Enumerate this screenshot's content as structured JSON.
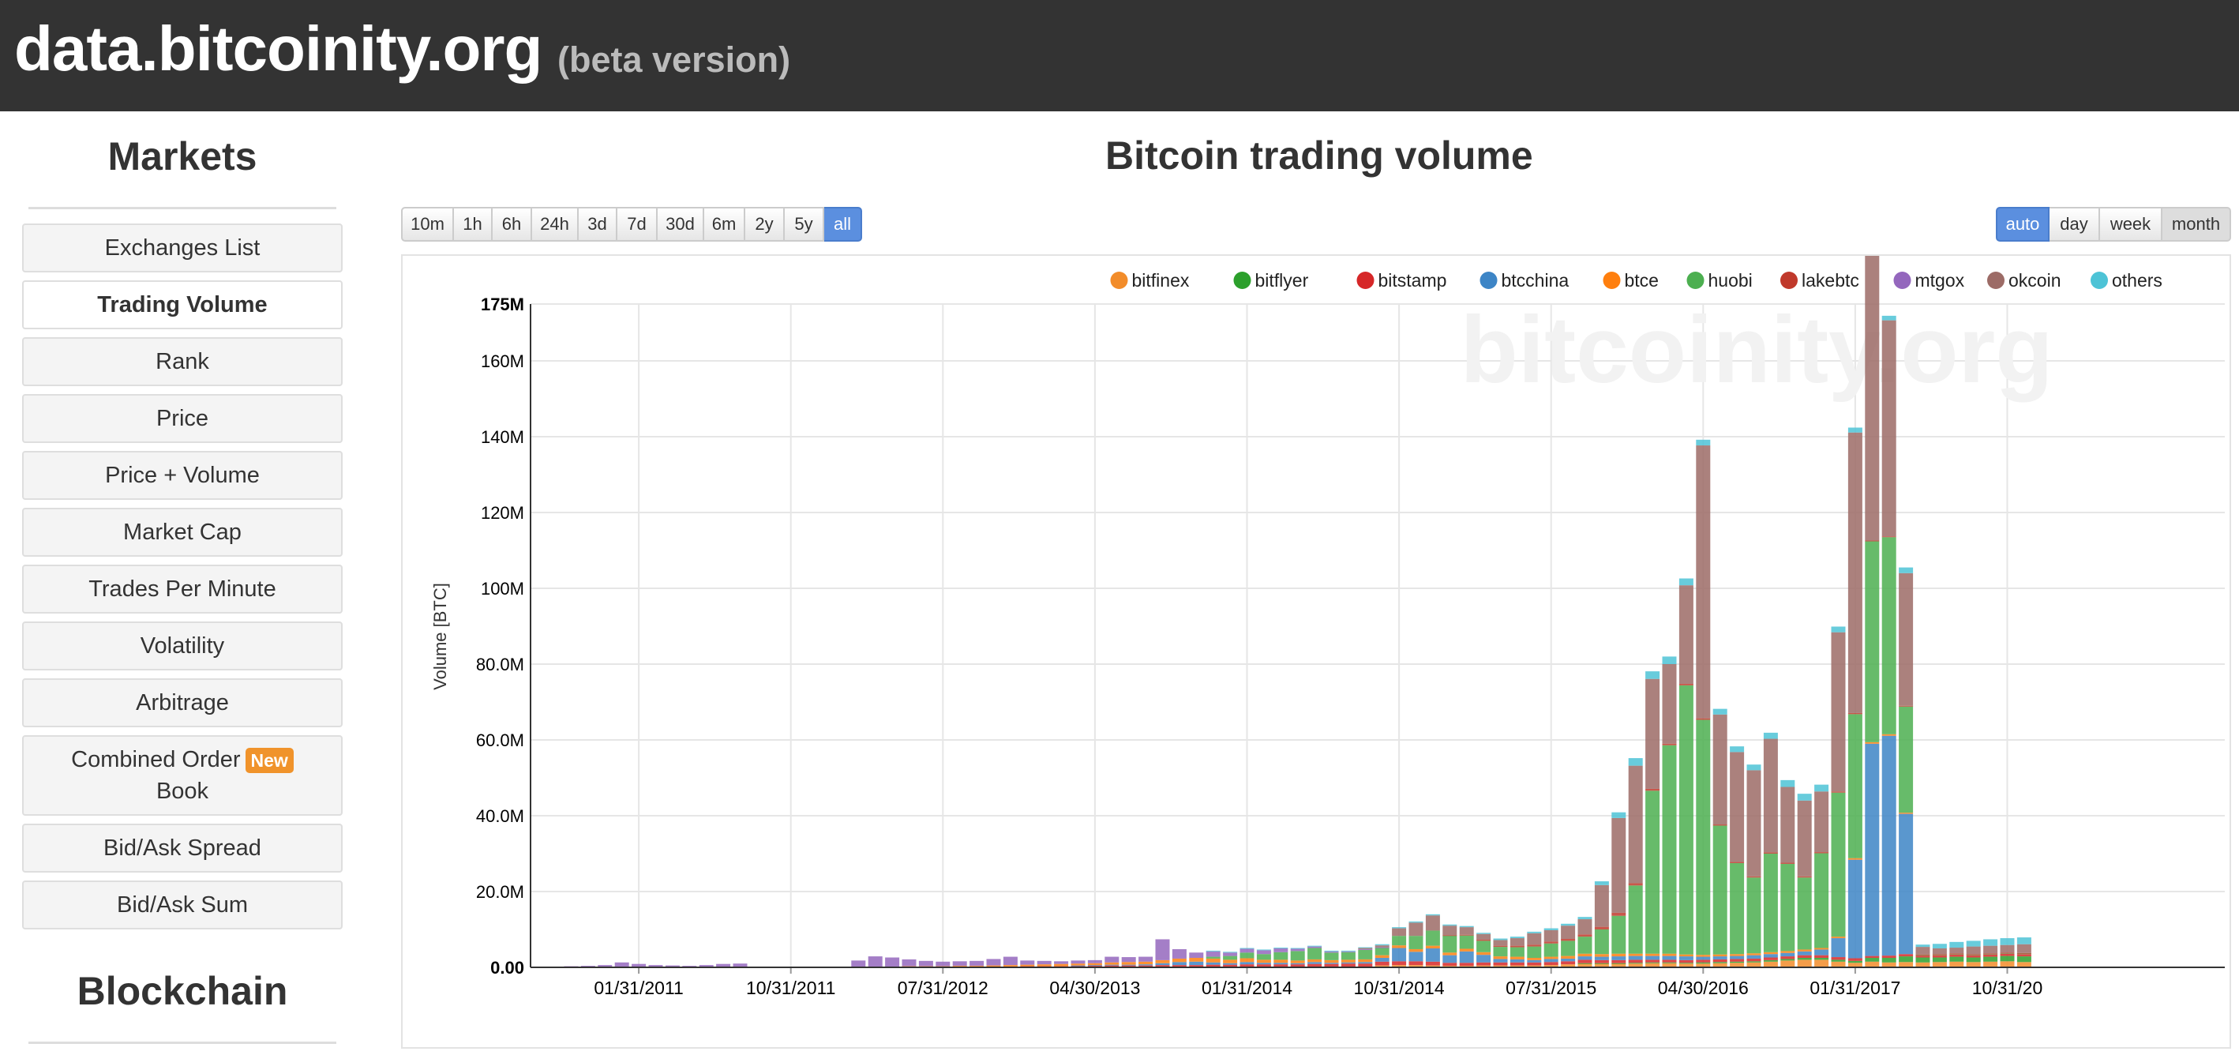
{
  "header": {
    "site_name": "data.bitcoinity.org",
    "beta_label": "(beta version)"
  },
  "sidebar": {
    "markets_heading": "Markets",
    "items": [
      {
        "label": "Exchanges List"
      },
      {
        "label": "Trading Volume",
        "active": true
      },
      {
        "label": "Rank"
      },
      {
        "label": "Price"
      },
      {
        "label": "Price + Volume"
      },
      {
        "label": "Market Cap"
      },
      {
        "label": "Trades Per Minute"
      },
      {
        "label": "Volatility"
      },
      {
        "label": "Arbitrage"
      },
      {
        "label": "Combined Order",
        "label2": "Book",
        "badge": "New"
      },
      {
        "label": "Bid/Ask Spread"
      },
      {
        "label": "Bid/Ask Sum"
      }
    ],
    "blockchain_heading": "Blockchain"
  },
  "timespan_buttons": [
    "10m",
    "1h",
    "6h",
    "24h",
    "3d",
    "7d",
    "30d",
    "6m",
    "2y",
    "5y",
    "all"
  ],
  "timespan_selected": "all",
  "resolution_buttons": [
    "auto",
    "day",
    "week",
    "month"
  ],
  "resolution_selected": "auto",
  "resolution_pressed": "month",
  "colors": {
    "header_bg": "#333333",
    "accent": "#5b8fdf",
    "badge": "#f0932b"
  },
  "chart_data": {
    "type": "bar",
    "stacked": true,
    "title": "Bitcoin trading volume",
    "ylabel": "Volume [BTC]",
    "xlabel": "",
    "watermark": "bitcoinity.org",
    "ylim": [
      0,
      175000000
    ],
    "y_ticks": [
      {
        "value": 0,
        "label": "0.00"
      },
      {
        "value": 20000000,
        "label": "20.0M"
      },
      {
        "value": 40000000,
        "label": "40.0M"
      },
      {
        "value": 60000000,
        "label": "60.0M"
      },
      {
        "value": 80000000,
        "label": "80.0M"
      },
      {
        "value": 100000000,
        "label": "100M"
      },
      {
        "value": 120000000,
        "label": "120M"
      },
      {
        "value": 140000000,
        "label": "140M"
      },
      {
        "value": 160000000,
        "label": "160M"
      },
      {
        "value": 175000000,
        "label": "175M"
      }
    ],
    "x_ticks": [
      "01/31/2011",
      "10/31/2011",
      "07/31/2012",
      "04/30/2013",
      "01/31/2014",
      "10/31/2014",
      "07/31/2015",
      "04/30/2016",
      "01/31/2017",
      "10/31/20"
    ],
    "x_tick_month_index": [
      6,
      15,
      24,
      33,
      42,
      51,
      60,
      69,
      78,
      87
    ],
    "legend_position": "top-right",
    "grid": true,
    "categories_note": "monthly bars, index 0 = July 2010",
    "series": [
      {
        "name": "bitfinex",
        "color": "#f28c2a",
        "values": [
          0,
          0,
          0,
          0,
          0,
          0,
          0,
          0,
          0,
          0,
          0,
          0,
          0,
          0,
          0,
          0,
          0,
          0,
          0,
          0,
          0,
          0,
          0,
          0,
          0,
          0,
          0,
          0,
          0,
          0,
          0,
          0,
          0,
          0,
          0,
          0,
          0,
          0,
          0,
          0,
          0,
          0,
          0,
          0,
          0,
          0,
          0,
          0,
          0,
          0,
          0.5,
          0.6,
          0.6,
          0.5,
          0.4,
          0.4,
          0.5,
          0.5,
          0.5,
          0.5,
          0.6,
          0.8,
          1.0,
          1.0,
          1.0,
          1.0,
          1.1,
          1.1,
          1.0,
          1.0,
          1.1,
          1.2,
          1.3,
          1.5,
          1.8,
          2.0,
          2.0,
          1.5,
          1.2,
          1.5,
          1.3,
          1.4,
          1.3,
          1.4,
          1.5,
          1.4,
          1.5,
          1.6,
          1.4
        ]
      },
      {
        "name": "bitflyer",
        "color": "#2ca02c",
        "values": [
          0,
          0,
          0,
          0,
          0,
          0,
          0,
          0,
          0,
          0,
          0,
          0,
          0,
          0,
          0,
          0,
          0,
          0,
          0,
          0,
          0,
          0,
          0,
          0,
          0,
          0,
          0,
          0,
          0,
          0,
          0,
          0,
          0,
          0,
          0,
          0,
          0,
          0,
          0,
          0,
          0,
          0,
          0,
          0,
          0,
          0,
          0,
          0,
          0,
          0,
          0,
          0,
          0,
          0,
          0,
          0,
          0,
          0,
          0,
          0,
          0,
          0,
          0.1,
          0.1,
          0.1,
          0.2,
          0.2,
          0.2,
          0.2,
          0.3,
          0.3,
          0.3,
          0.3,
          0.4,
          0.4,
          0.5,
          0.5,
          0.5,
          0.5,
          1.0,
          1.2,
          1.5,
          1.3,
          1.2,
          1.3,
          1.2,
          1.3,
          1.4,
          1.5
        ]
      },
      {
        "name": "bitstamp",
        "color": "#d62728",
        "values": [
          0,
          0,
          0,
          0,
          0,
          0,
          0,
          0,
          0,
          0,
          0,
          0,
          0,
          0,
          0,
          0,
          0,
          0,
          0,
          0,
          0,
          0,
          0.1,
          0.1,
          0.1,
          0.1,
          0.1,
          0.2,
          0.2,
          0.3,
          0.3,
          0.3,
          0.4,
          0.5,
          0.5,
          0.5,
          0.5,
          0.6,
          0.6,
          0.6,
          0.7,
          0.7,
          0.8,
          0.8,
          0.8,
          0.8,
          0.9,
          0.9,
          1.0,
          1.0,
          1.0,
          1.0,
          1.0,
          1.0,
          0.8,
          0.8,
          0.8,
          0.8,
          0.8,
          0.8,
          0.8,
          0.8,
          0.9,
          0.8,
          0.8,
          0.8,
          0.7,
          0.7,
          0.7,
          0.7,
          0.7,
          0.7,
          0.7,
          0.7,
          0.7,
          0.7,
          0.7,
          0.7,
          0.7,
          0.5,
          0.6,
          0.6,
          0.5,
          0.6,
          0.6,
          0.6,
          0.6,
          0.6,
          0.6
        ]
      },
      {
        "name": "btcchina",
        "color": "#3d85c6",
        "values": [
          0,
          0,
          0,
          0,
          0,
          0,
          0,
          0,
          0,
          0,
          0,
          0,
          0,
          0,
          0,
          0,
          0,
          0,
          0,
          0,
          0,
          0,
          0,
          0,
          0,
          0,
          0,
          0,
          0,
          0,
          0,
          0,
          0.1,
          0.1,
          0.2,
          0.2,
          0.3,
          0.5,
          0.8,
          0.9,
          0.6,
          0.4,
          0.6,
          0.4,
          0.4,
          0.3,
          0.5,
          0.3,
          0.3,
          0.4,
          1.0,
          3.5,
          2.5,
          3.5,
          2.0,
          3.0,
          2.0,
          0.9,
          0.8,
          0.6,
          0.8,
          0.7,
          0.9,
          0.9,
          1.0,
          1.0,
          1.0,
          1.0,
          1.0,
          0.8,
          0.8,
          0.8,
          0.9,
          0.9,
          0.9,
          1.0,
          1.5,
          5.0,
          26.0,
          56.0,
          58.0,
          37.0,
          0,
          0,
          0,
          0,
          0,
          0,
          0
        ]
      },
      {
        "name": "btce",
        "color": "#ff7f0e",
        "values": [
          0,
          0,
          0,
          0,
          0,
          0,
          0,
          0,
          0,
          0,
          0,
          0,
          0,
          0,
          0,
          0,
          0.1,
          0.1,
          0.1,
          0.1,
          0.1,
          0.1,
          0.2,
          0.2,
          0.2,
          0.3,
          0.3,
          0.3,
          0.4,
          0.4,
          0.5,
          0.6,
          0.5,
          0.5,
          0.6,
          0.7,
          0.7,
          0.8,
          0.9,
          1.0,
          1.0,
          0.9,
          1.0,
          0.8,
          0.8,
          0.7,
          0.7,
          0.7,
          0.7,
          0.7,
          0.7,
          0.7,
          0.7,
          0.7,
          0.7,
          0.7,
          0.7,
          0.7,
          0.7,
          0.6,
          0.6,
          0.7,
          0.7,
          0.7,
          0.7,
          0.6,
          0.6,
          0.6,
          0.5,
          0.5,
          0.5,
          0.5,
          0.5,
          0.5,
          0.5,
          0.5,
          0.4,
          0.4,
          0.4,
          0.4,
          0.4,
          0.3,
          0,
          0,
          0,
          0,
          0,
          0,
          0
        ]
      },
      {
        "name": "huobi",
        "color": "#4caf50",
        "values": [
          0,
          0,
          0,
          0,
          0,
          0,
          0,
          0,
          0,
          0,
          0,
          0,
          0,
          0,
          0,
          0,
          0,
          0,
          0,
          0,
          0,
          0,
          0,
          0,
          0,
          0,
          0,
          0,
          0,
          0,
          0,
          0,
          0,
          0,
          0,
          0,
          0,
          0,
          0,
          0,
          0.5,
          1.0,
          1.5,
          1.5,
          2.0,
          2.5,
          3.0,
          2.0,
          2.0,
          2.5,
          2.0,
          2.5,
          3.5,
          4.0,
          4.5,
          3.5,
          3.0,
          2.5,
          2.5,
          3.0,
          3.5,
          4.0,
          4.5,
          6.5,
          10.0,
          18.0,
          43.0,
          55.0,
          71.0,
          62.0,
          34.0,
          24.0,
          20.0,
          26.0,
          23.0,
          19.0,
          25.0,
          38.0,
          38.0,
          53.0,
          52.0,
          28.0,
          0.2,
          0.2,
          0.2,
          0.2,
          0.2,
          0.2,
          0.2
        ]
      },
      {
        "name": "lakebtc",
        "color": "#c0392b",
        "values": [
          0,
          0,
          0,
          0,
          0,
          0,
          0,
          0,
          0,
          0,
          0,
          0,
          0,
          0,
          0,
          0,
          0,
          0,
          0,
          0,
          0,
          0,
          0,
          0,
          0,
          0,
          0,
          0,
          0,
          0,
          0,
          0,
          0,
          0,
          0,
          0,
          0,
          0,
          0,
          0,
          0,
          0,
          0,
          0,
          0,
          0,
          0,
          0,
          0,
          0,
          0,
          0,
          0,
          0,
          0.1,
          0.2,
          0.3,
          0.3,
          0.4,
          0.5,
          0.5,
          0.5,
          0.6,
          0.7,
          0.8,
          0.6,
          0.5,
          0.4,
          0.4,
          0.4,
          0.3,
          0.3,
          0.3,
          0.3,
          0.3,
          0.3,
          0.3,
          0.3,
          0.3,
          0.2,
          0.2,
          0.2,
          0.1,
          0.1,
          0.1,
          0.1,
          0.1,
          0.1,
          0.1
        ]
      },
      {
        "name": "mtgox",
        "color": "#9467bd",
        "values": [
          0.2,
          0.2,
          0.3,
          0.4,
          0.6,
          1.3,
          0.9,
          0.6,
          0.5,
          0.4,
          0.6,
          0.9,
          1.0,
          0,
          0,
          0,
          0,
          0,
          0.1,
          1.7,
          2.8,
          2.5,
          1.8,
          1.4,
          1.2,
          1.2,
          1.3,
          1.7,
          2.2,
          1.1,
          0.9,
          0.7,
          0.8,
          0.8,
          1.5,
          1.3,
          1.3,
          5.5,
          2.5,
          1.4,
          1.4,
          0.9,
          1.0,
          1.0,
          1.0,
          0.6,
          0.4,
          0.3,
          0.2,
          0.2,
          0.1,
          0,
          0,
          0,
          0,
          0,
          0,
          0,
          0,
          0,
          0,
          0,
          0,
          0,
          0,
          0,
          0,
          0,
          0,
          0,
          0,
          0,
          0,
          0,
          0,
          0,
          0,
          0,
          0,
          0,
          0,
          0,
          0,
          0,
          0,
          0,
          0,
          0,
          0
        ]
      },
      {
        "name": "okcoin",
        "color": "#9c6b66",
        "values": [
          0,
          0,
          0,
          0,
          0,
          0,
          0,
          0,
          0,
          0,
          0,
          0,
          0,
          0,
          0,
          0,
          0,
          0,
          0,
          0,
          0,
          0,
          0,
          0,
          0,
          0,
          0,
          0,
          0,
          0,
          0,
          0,
          0,
          0,
          0,
          0,
          0,
          0,
          0,
          0,
          0,
          0,
          0,
          0,
          0,
          0,
          0,
          0,
          0,
          0.3,
          0.5,
          2.0,
          3.5,
          4.0,
          2.5,
          2.0,
          1.5,
          1.5,
          2.0,
          3.0,
          3.0,
          3.5,
          4.0,
          11.0,
          25.0,
          31.0,
          29.0,
          21.0,
          26.0,
          72.0,
          29.0,
          29.0,
          28.0,
          30.0,
          20.0,
          20.0,
          16.0,
          42.0,
          74.0,
          104.0,
          57.0,
          35.0,
          2.0,
          1.5,
          1.5,
          2.0,
          2.0,
          2.0,
          2.3
        ]
      },
      {
        "name": "others",
        "color": "#4dc3d6",
        "values": [
          0,
          0,
          0,
          0,
          0,
          0,
          0,
          0,
          0,
          0,
          0,
          0,
          0,
          0,
          0,
          0,
          0,
          0,
          0,
          0,
          0,
          0,
          0,
          0,
          0,
          0,
          0,
          0,
          0,
          0,
          0,
          0,
          0,
          0,
          0,
          0,
          0,
          0,
          0,
          0,
          0.2,
          0.2,
          0.2,
          0.2,
          0.2,
          0.2,
          0.2,
          0.2,
          0.2,
          0.2,
          0.3,
          0.3,
          0.3,
          0.3,
          0.3,
          0.3,
          0.3,
          0.4,
          0.4,
          0.4,
          0.5,
          0.5,
          0.6,
          1.0,
          1.5,
          2.0,
          2.0,
          2.0,
          1.8,
          1.5,
          1.5,
          1.5,
          1.5,
          1.6,
          1.8,
          1.8,
          1.8,
          1.5,
          1.3,
          1.0,
          1.2,
          1.5,
          0.6,
          1.2,
          1.5,
          1.5,
          1.7,
          1.8,
          1.8
        ]
      }
    ],
    "values_unit_note": "values in millions of BTC"
  }
}
